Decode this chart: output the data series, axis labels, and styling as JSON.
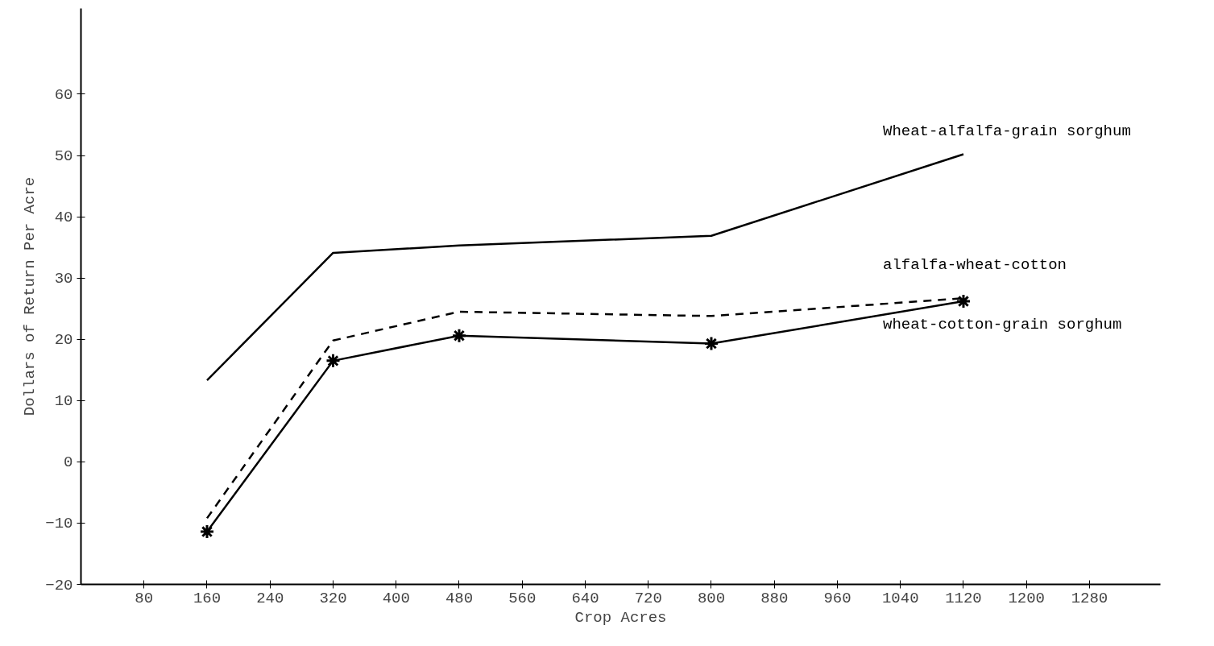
{
  "chart_data": {
    "type": "line",
    "xlabel": "Crop Acres",
    "ylabel": "Dollars of Return Per Acre",
    "x": [
      160,
      320,
      480,
      800,
      1120
    ],
    "series": [
      {
        "name": "Wheat-alfalfa-grain sorghum",
        "color": "#000000",
        "line_style": "solid",
        "marker": "none",
        "values": [
          13.3,
          34.1,
          35.3,
          36.9,
          50.2
        ]
      },
      {
        "name": "alfalfa-wheat-cotton",
        "color": "#000000",
        "line_style": "dashed",
        "marker": "none",
        "values": [
          -9.2,
          19.8,
          24.5,
          23.8,
          26.7
        ]
      },
      {
        "name": "wheat-cotton-grain sorghum",
        "color": "#000000",
        "line_style": "solid",
        "marker": "cross",
        "values": [
          -11.4,
          16.5,
          20.6,
          19.3,
          26.2
        ]
      }
    ],
    "xlim": [
      0,
      1370
    ],
    "ylim": [
      -20,
      74
    ],
    "xticks": [
      80,
      160,
      240,
      320,
      400,
      480,
      560,
      640,
      720,
      800,
      880,
      960,
      1040,
      1120,
      1200,
      1280
    ],
    "yticks": [
      -20,
      -10,
      0,
      10,
      20,
      30,
      40,
      50,
      60
    ],
    "grid": false
  }
}
